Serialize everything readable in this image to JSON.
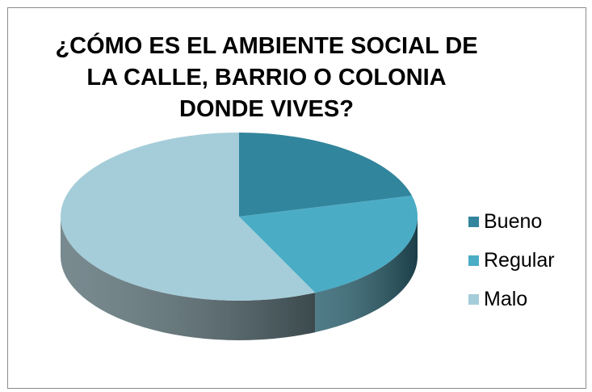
{
  "chart_data": {
    "type": "pie",
    "title_lines": [
      "¿CÓMO ES EL AMBIENTE SOCIAL DE",
      "LA CALLE, BARRIO O COLONIA",
      "DONDE VIVES?"
    ],
    "categories": [
      "Bueno",
      "Regular",
      "Malo"
    ],
    "values": [
      21,
      22,
      57
    ],
    "colors": [
      "#31859c",
      "#4bacc6",
      "#a5cdd9"
    ],
    "legend_position": "right",
    "style": "3d"
  }
}
